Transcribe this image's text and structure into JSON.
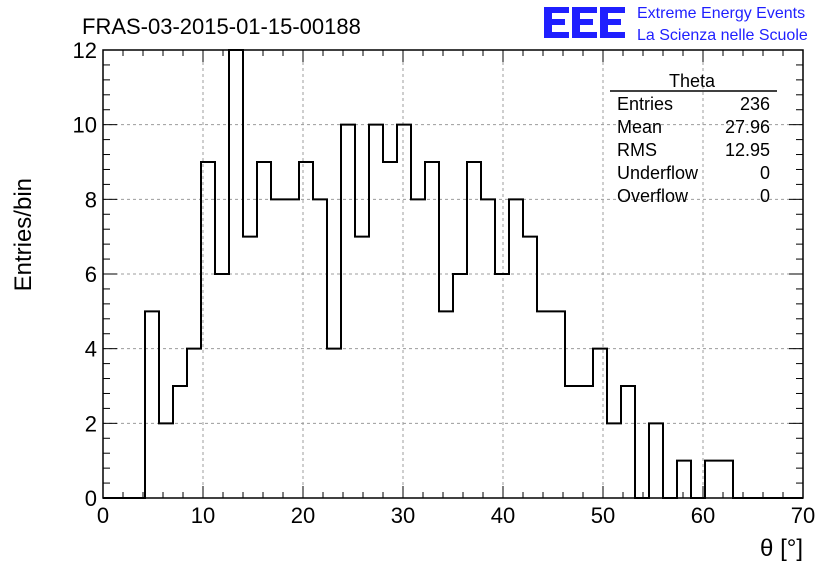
{
  "chart_data": {
    "type": "bar",
    "title": "FRAS-03-2015-01-15-00188",
    "xlabel": "θ [°]",
    "ylabel": "Entries/bin",
    "xlim": [
      0,
      70
    ],
    "ylim": [
      0,
      12
    ],
    "grid": true,
    "bin_edges": [
      0,
      1.4,
      2.8,
      4.2,
      5.6,
      7,
      8.4,
      9.8,
      11.2,
      12.6,
      14,
      15.4,
      16.8,
      18.2,
      19.6,
      21,
      22.4,
      23.8,
      25.2,
      26.6,
      28,
      29.4,
      30.8,
      32.2,
      33.6,
      35,
      36.4,
      37.8,
      39.2,
      40.6,
      42,
      43.4,
      44.8,
      46.2,
      47.6,
      49,
      50.4,
      51.8,
      53.2,
      54.6,
      56,
      57.4,
      58.8,
      60.2,
      61.6,
      63,
      64.4,
      65.8,
      67.2,
      68.6,
      70
    ],
    "values": [
      0,
      0,
      0,
      5,
      2,
      3,
      4,
      9,
      6,
      12,
      7,
      9,
      8,
      8,
      9,
      8,
      4,
      10,
      7,
      10,
      9,
      10,
      8,
      9,
      5,
      6,
      9,
      8,
      6,
      8,
      7,
      5,
      5,
      3,
      3,
      4,
      2,
      3,
      0,
      2,
      0,
      1,
      0,
      1,
      1,
      0,
      0,
      0,
      0,
      0
    ],
    "x_ticks": [
      "0",
      "10",
      "20",
      "30",
      "40",
      "50",
      "60",
      "70"
    ],
    "y_ticks": [
      "0",
      "2",
      "4",
      "6",
      "8",
      "10",
      "12"
    ]
  },
  "stats_box": {
    "title": "Theta",
    "rows": [
      {
        "label": "Entries",
        "value": "236"
      },
      {
        "label": "Mean",
        "value": "27.96"
      },
      {
        "label": "RMS",
        "value": "12.95"
      },
      {
        "label": "Underflow",
        "value": "0"
      },
      {
        "label": "Overflow",
        "value": "0"
      }
    ]
  },
  "logo": {
    "mark": "EEE",
    "line1": "Extreme Energy Events",
    "line2": "La Scienza nelle Scuole",
    "color": "#1f1fff"
  }
}
